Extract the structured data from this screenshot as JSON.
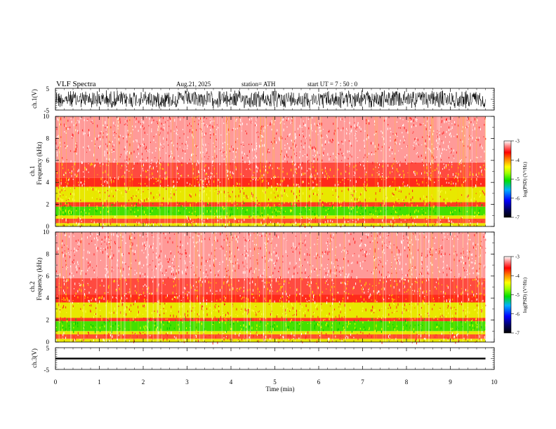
{
  "header": {
    "title": "VLF  Spectra",
    "date": "Aug.21, 2025",
    "station": "station= ATH",
    "start": "start  UT  =    7  : 50 : 0"
  },
  "chart_data": [
    {
      "type": "line",
      "panel": "ch1-waveform",
      "ylabel": "ch.1(V)",
      "ylim": [
        -5,
        5
      ],
      "yticks": [
        "5",
        "-5"
      ],
      "x": [
        0,
        9.8
      ],
      "xlim": [
        0,
        10
      ],
      "amplitude_range": [
        -4.5,
        4.5
      ],
      "color": "#000000"
    },
    {
      "type": "heatmap",
      "panel": "ch1-spectrogram",
      "ylabel_top": "ch.1",
      "ylabel": "Frequency  (kHz)",
      "ylim": [
        0,
        10
      ],
      "yticks": [
        "0",
        "2",
        "4",
        "6",
        "8",
        "10"
      ],
      "xlim": [
        0,
        10
      ],
      "data_x_end": 9.8,
      "bands": [
        {
          "from": 0.0,
          "to": 0.3,
          "color": "#e8e800"
        },
        {
          "from": 0.3,
          "to": 0.7,
          "color": "#ff5030"
        },
        {
          "from": 0.7,
          "to": 1.0,
          "color": "#e8e800"
        },
        {
          "from": 1.0,
          "to": 1.8,
          "color": "#44e000"
        },
        {
          "from": 1.8,
          "to": 2.2,
          "color": "#ff3a20"
        },
        {
          "from": 2.2,
          "to": 3.6,
          "color": "#e8e800"
        },
        {
          "from": 3.6,
          "to": 4.4,
          "color": "#ff2a1a"
        },
        {
          "from": 4.4,
          "to": 5.8,
          "color": "#ff4a40"
        },
        {
          "from": 5.8,
          "to": 10.0,
          "color": "#ff9a98"
        }
      ],
      "colorbar": {
        "label": "log(PSD) (V²/Hz)",
        "ticks": [
          "-3",
          "-4",
          "-5",
          "-6",
          "-7"
        ],
        "range": [
          -7,
          -3
        ]
      }
    },
    {
      "type": "heatmap",
      "panel": "ch2-spectrogram",
      "ylabel_top": "ch.2",
      "ylabel": "Frequency  (kHz)",
      "ylim": [
        0,
        10
      ],
      "yticks": [
        "0",
        "2",
        "4",
        "6",
        "8",
        "10"
      ],
      "xlim": [
        0,
        10
      ],
      "data_x_end": 9.8,
      "bands": [
        {
          "from": 0.0,
          "to": 0.3,
          "color": "#e8e800"
        },
        {
          "from": 0.3,
          "to": 0.7,
          "color": "#ff5030"
        },
        {
          "from": 0.7,
          "to": 1.0,
          "color": "#e8e800"
        },
        {
          "from": 1.0,
          "to": 1.9,
          "color": "#44e000"
        },
        {
          "from": 1.9,
          "to": 2.2,
          "color": "#ff3a20"
        },
        {
          "from": 2.2,
          "to": 3.6,
          "color": "#e8e800"
        },
        {
          "from": 3.6,
          "to": 4.3,
          "color": "#ff2a1a"
        },
        {
          "from": 4.3,
          "to": 5.8,
          "color": "#ff4a40"
        },
        {
          "from": 5.8,
          "to": 10.0,
          "color": "#ff9a98"
        }
      ],
      "colorbar": {
        "label": "log(PSD) (V²/Hz)",
        "ticks": [
          "-3",
          "-4",
          "-5",
          "-6",
          "-7"
        ],
        "range": [
          -7,
          -3
        ]
      }
    },
    {
      "type": "line",
      "panel": "ch3-waveform",
      "ylabel": "ch.3(V)",
      "ylim": [
        -5,
        5
      ],
      "yticks": [
        "5",
        "-5"
      ],
      "x": [
        0,
        9.8
      ],
      "xlim": [
        0,
        10
      ],
      "amplitude_range": [
        -0.3,
        0.3
      ],
      "color": "#000000",
      "xlabel": "Time  (min)",
      "xticks": [
        "0",
        "1",
        "2",
        "3",
        "4",
        "5",
        "6",
        "7",
        "8",
        "9",
        "10"
      ]
    }
  ]
}
